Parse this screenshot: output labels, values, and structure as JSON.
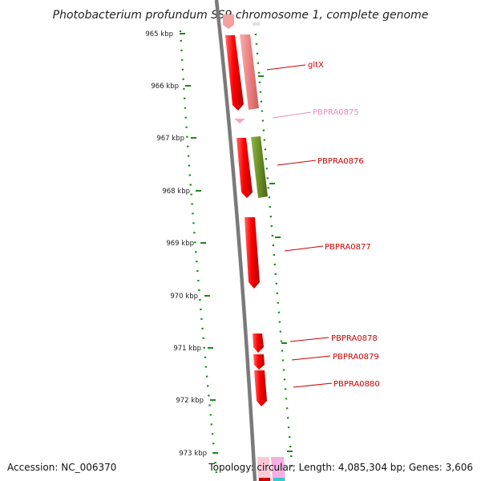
{
  "title": "Photobacterium profundum SS9 chromosome 1, complete genome",
  "accession_label": "Accession: NC_006370",
  "topology_label": "Topology: circular; Length: 4,085,304 bp; Genes: 3,606",
  "ticks": [
    "965 kbp",
    "966 kbp",
    "967 kbp",
    "968 kbp",
    "969 kbp",
    "970 kbp",
    "971 kbp",
    "972 kbp",
    "973 kbp"
  ],
  "genes": [
    {
      "name": "gltX",
      "color": "#cc0000"
    },
    {
      "name": "PBPRA0875",
      "color": "#e78ac3"
    },
    {
      "name": "PBPRA0876",
      "color": "#cc0000"
    },
    {
      "name": "PBPRA0877",
      "color": "#cc0000"
    },
    {
      "name": "PBPRA0878",
      "color": "#cc0000"
    },
    {
      "name": "PBPRA0879",
      "color": "#cc0000"
    },
    {
      "name": "PBPRA0880",
      "color": "#cc0000"
    }
  ],
  "colors": {
    "cds": "#ff0000",
    "cds_light": "#f08080",
    "cds_olive": "#6b8e23",
    "pink": "#f4a7c8",
    "gc_dots": "#1a8a1a",
    "backbone": "#7a7a7a"
  }
}
